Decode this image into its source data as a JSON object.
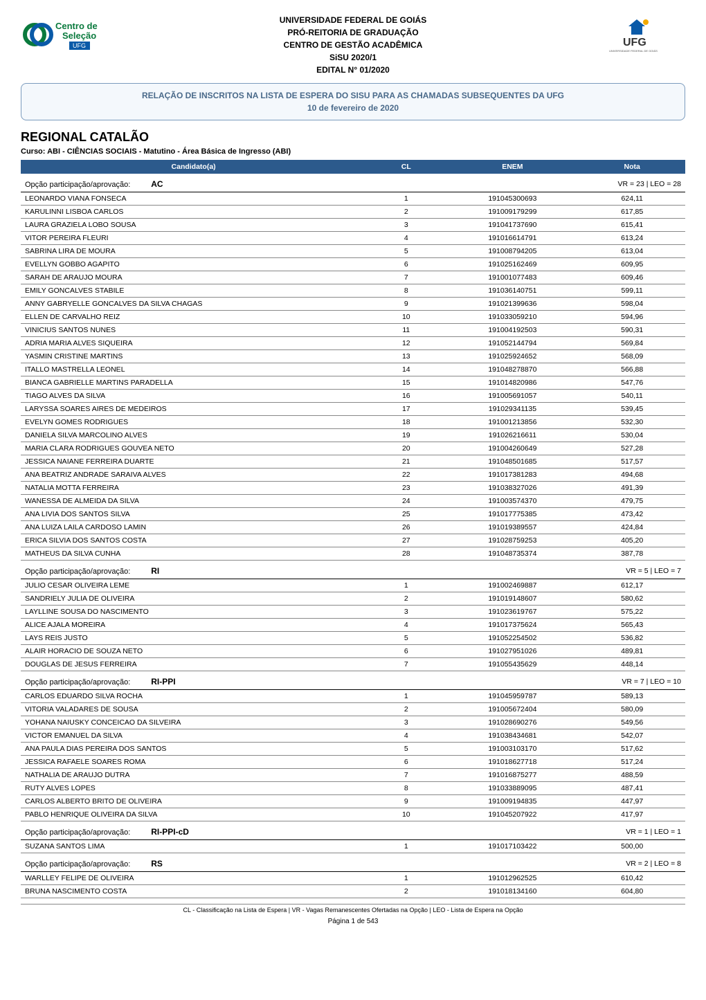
{
  "header": {
    "lines": [
      "UNIVERSIDADE FEDERAL DE GOIÁS",
      "PRÓ-REITORIA DE GRADUAÇÃO",
      "CENTRO DE GESTÃO ACADÊMICA",
      "SiSU 2020/1",
      "EDITAL N° 01/2020"
    ],
    "logo_left_text1": "Centro de",
    "logo_left_text2": "Seleção",
    "logo_left_text3": "UFG",
    "logo_right_text": "UFG",
    "logo_right_sub": "UNIVERSIDADE FEDERAL DE GOIÁS"
  },
  "banner": {
    "title": "RELAÇÃO DE INSCRITOS NA LISTA DE ESPERA DO SISU PARA AS CHAMADAS SUBSEQUENTES DA UFG",
    "date": "10 de fevereiro de 2020",
    "border_color": "#7b9bbd",
    "bg_color": "#f4f8fc",
    "text_color": "#4a6a8a"
  },
  "regional": "REGIONAL CATALÃO",
  "curso": "Curso: ABI - CIÊNCIAS SOCIAIS - Matutino - Área Básica de Ingresso (ABI)",
  "table": {
    "header_bg": "#2c5a8c",
    "header_fg": "#ffffff",
    "row_border": "#888888",
    "columns": [
      "Candidato(a)",
      "CL",
      "ENEM",
      "Nota"
    ],
    "groups": [
      {
        "label": "Opção participação/aprovação:",
        "code": "AC",
        "vr": 23,
        "leo": 28,
        "rows": [
          [
            "LEONARDO VIANA FONSECA",
            1,
            "191045300693",
            "624,11"
          ],
          [
            "KARULINNI LISBOA CARLOS",
            2,
            "191009179299",
            "617,85"
          ],
          [
            "LAURA GRAZIELA LOBO SOUSA",
            3,
            "191041737690",
            "615,41"
          ],
          [
            "VITOR PEREIRA FLEURI",
            4,
            "191016614791",
            "613,24"
          ],
          [
            "SABRINA LIRA DE MOURA",
            5,
            "191008794205",
            "613,04"
          ],
          [
            "EVELLYN GOBBO AGAPITO",
            6,
            "191025162469",
            "609,95"
          ],
          [
            "SARAH DE ARAUJO MOURA",
            7,
            "191001077483",
            "609,46"
          ],
          [
            "EMILY GONCALVES STABILE",
            8,
            "191036140751",
            "599,11"
          ],
          [
            "ANNY GABRYELLE GONCALVES DA SILVA CHAGAS",
            9,
            "191021399636",
            "598,04"
          ],
          [
            "ELLEN DE CARVALHO REIZ",
            10,
            "191033059210",
            "594,96"
          ],
          [
            "VINICIUS SANTOS NUNES",
            11,
            "191004192503",
            "590,31"
          ],
          [
            "ADRIA MARIA ALVES SIQUEIRA",
            12,
            "191052144794",
            "569,84"
          ],
          [
            "YASMIN CRISTINE MARTINS",
            13,
            "191025924652",
            "568,09"
          ],
          [
            "ITALLO MASTRELLA LEONEL",
            14,
            "191048278870",
            "566,88"
          ],
          [
            "BIANCA GABRIELLE MARTINS PARADELLA",
            15,
            "191014820986",
            "547,76"
          ],
          [
            "TIAGO ALVES DA SILVA",
            16,
            "191005691057",
            "540,11"
          ],
          [
            "LARYSSA SOARES AIRES DE MEDEIROS",
            17,
            "191029341135",
            "539,45"
          ],
          [
            "EVELYN GOMES RODRIGUES",
            18,
            "191001213856",
            "532,30"
          ],
          [
            "DANIELA SILVA MARCOLINO ALVES",
            19,
            "191026216611",
            "530,04"
          ],
          [
            "MARIA CLARA RODRIGUES GOUVEA NETO",
            20,
            "191004260649",
            "527,28"
          ],
          [
            "JESSICA NAIANE FERREIRA DUARTE",
            21,
            "191048501685",
            "517,57"
          ],
          [
            "ANA BEATRIZ ANDRADE SARAIVA ALVES",
            22,
            "191017381283",
            "494,68"
          ],
          [
            "NATALIA MOTTA FERREIRA",
            23,
            "191038327026",
            "491,39"
          ],
          [
            "WANESSA DE ALMEIDA DA SILVA",
            24,
            "191003574370",
            "479,75"
          ],
          [
            "ANA LIVIA DOS SANTOS SILVA",
            25,
            "191017775385",
            "473,42"
          ],
          [
            "ANA LUIZA LAILA CARDOSO LAMIN",
            26,
            "191019389557",
            "424,84"
          ],
          [
            "ERICA SILVIA DOS SANTOS COSTA",
            27,
            "191028759253",
            "405,20"
          ],
          [
            "MATHEUS DA SILVA CUNHA",
            28,
            "191048735374",
            "387,78"
          ]
        ]
      },
      {
        "label": "Opção participação/aprovação:",
        "code": "RI",
        "vr": 5,
        "leo": 7,
        "rows": [
          [
            "JULIO CESAR OLIVEIRA LEME",
            1,
            "191002469887",
            "612,17"
          ],
          [
            "SANDRIELY JULIA DE OLIVEIRA",
            2,
            "191019148607",
            "580,62"
          ],
          [
            "LAYLLINE SOUSA DO NASCIMENTO",
            3,
            "191023619767",
            "575,22"
          ],
          [
            "ALICE AJALA MOREIRA",
            4,
            "191017375624",
            "565,43"
          ],
          [
            "LAYS REIS JUSTO",
            5,
            "191052254502",
            "536,82"
          ],
          [
            "ALAIR HORACIO DE SOUZA NETO",
            6,
            "191027951026",
            "489,81"
          ],
          [
            "DOUGLAS DE JESUS FERREIRA",
            7,
            "191055435629",
            "448,14"
          ]
        ]
      },
      {
        "label": "Opção participação/aprovação:",
        "code": "RI-PPI",
        "vr": 7,
        "leo": 10,
        "rows": [
          [
            "CARLOS EDUARDO SILVA ROCHA",
            1,
            "191045959787",
            "589,13"
          ],
          [
            "VITORIA VALADARES DE SOUSA",
            2,
            "191005672404",
            "580,09"
          ],
          [
            "YOHANA NAIUSKY CONCEICAO DA SILVEIRA",
            3,
            "191028690276",
            "549,56"
          ],
          [
            "VICTOR EMANUEL DA SILVA",
            4,
            "191038434681",
            "542,07"
          ],
          [
            "ANA PAULA DIAS PEREIRA DOS SANTOS",
            5,
            "191003103170",
            "517,62"
          ],
          [
            "JESSICA RAFAELE SOARES ROMA",
            6,
            "191018627718",
            "517,24"
          ],
          [
            "NATHALIA DE ARAUJO DUTRA",
            7,
            "191016875277",
            "488,59"
          ],
          [
            "RUTY ALVES LOPES",
            8,
            "191033889095",
            "487,41"
          ],
          [
            "CARLOS ALBERTO BRITO DE OLIVEIRA",
            9,
            "191009194835",
            "447,97"
          ],
          [
            "PABLO HENRIQUE OLIVEIRA DA SILVA",
            10,
            "191045207922",
            "417,97"
          ]
        ]
      },
      {
        "label": "Opção participação/aprovação:",
        "code": "RI-PPI-cD",
        "vr": 1,
        "leo": 1,
        "rows": [
          [
            "SUZANA SANTOS LIMA",
            1,
            "191017103422",
            "500,00"
          ]
        ]
      },
      {
        "label": "Opção participação/aprovação:",
        "code": "RS",
        "vr": 2,
        "leo": 8,
        "rows": [
          [
            "WARLLEY FELIPE DE OLIVEIRA",
            1,
            "191012962525",
            "610,42"
          ],
          [
            "BRUNA NASCIMENTO COSTA",
            2,
            "191018134160",
            "604,80"
          ]
        ]
      }
    ]
  },
  "footer": {
    "note": "CL - Classificação na Lista de Espera  |  VR - Vagas Remanescentes Ofertadas na Opção  |  LEO - Lista de Espera na Opção",
    "page": "Página 1 de 543"
  }
}
